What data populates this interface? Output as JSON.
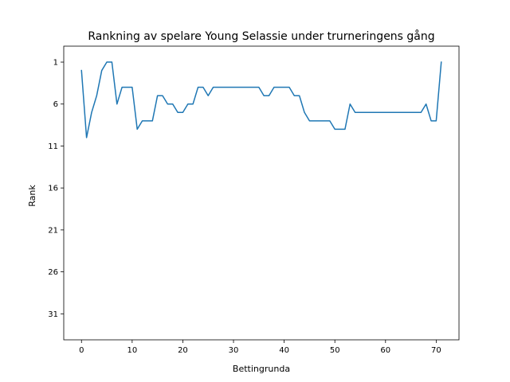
{
  "chart_data": {
    "type": "line",
    "title": "Rankning av spelare Young Selassie under trurneringens gång",
    "xlabel": "Bettingrunda",
    "ylabel": "Rank",
    "xlim": [
      -3.5,
      74.5
    ],
    "ylim": [
      34.1,
      -0.9
    ],
    "y_inverted": true,
    "xticks": [
      0,
      10,
      20,
      30,
      40,
      50,
      60,
      70
    ],
    "yticks": [
      1,
      6,
      11,
      16,
      21,
      26,
      31
    ],
    "grid": false,
    "series": [
      {
        "color": "#1f77b4",
        "x": [
          0,
          1,
          2,
          3,
          4,
          5,
          6,
          7,
          8,
          9,
          10,
          11,
          12,
          13,
          14,
          15,
          16,
          17,
          18,
          19,
          20,
          21,
          22,
          23,
          24,
          25,
          26,
          27,
          28,
          29,
          30,
          31,
          32,
          33,
          34,
          35,
          36,
          37,
          38,
          39,
          40,
          41,
          42,
          43,
          44,
          45,
          46,
          47,
          48,
          49,
          50,
          51,
          52,
          53,
          54,
          55,
          56,
          57,
          58,
          59,
          60,
          61,
          62,
          63,
          64,
          65,
          66,
          67,
          68,
          69,
          70,
          71
        ],
        "y": [
          2,
          10,
          7,
          5,
          2,
          1,
          1,
          6,
          4,
          4,
          4,
          9,
          8,
          8,
          8,
          5,
          5,
          6,
          6,
          7,
          7,
          6,
          6,
          4,
          4,
          5,
          4,
          4,
          4,
          4,
          4,
          4,
          4,
          4,
          4,
          4,
          5,
          5,
          4,
          4,
          4,
          4,
          5,
          5,
          7,
          8,
          8,
          8,
          8,
          8,
          9,
          9,
          9,
          6,
          7,
          7,
          7,
          7,
          7,
          7,
          7,
          7,
          7,
          7,
          7,
          7,
          7,
          7,
          6,
          8,
          8,
          1
        ]
      }
    ]
  }
}
